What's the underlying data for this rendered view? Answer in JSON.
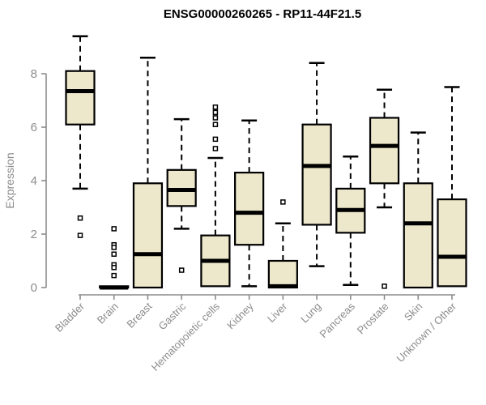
{
  "chart_data": {
    "type": "boxplot",
    "title": "ENSG00000260265 - RP11-44F21.5",
    "ylabel": "Expression",
    "xlabel": "",
    "ylim": [
      0,
      8
    ],
    "yticks": [
      0,
      2,
      4,
      6,
      8
    ],
    "grid": false,
    "legend": null,
    "categories": [
      "Bladder",
      "Brain",
      "Breast",
      "Gastric",
      "Hematopoietic cells",
      "Kidney",
      "Liver",
      "Lung",
      "Pancreas",
      "Prostate",
      "Skin",
      "Unknown / Other"
    ],
    "boxes": [
      {
        "category": "Bladder",
        "whisker_low": 3.7,
        "q1": 6.1,
        "median": 7.35,
        "q3": 8.1,
        "whisker_high": 9.4,
        "outliers": [
          2.6,
          1.95
        ]
      },
      {
        "category": "Brain",
        "whisker_low": 0,
        "q1": 0,
        "median": 0,
        "q3": 0.05,
        "whisker_high": 0.05,
        "outliers": [
          2.2,
          1.6,
          1.5,
          1.25,
          0.85,
          0.75,
          0.45
        ]
      },
      {
        "category": "Breast",
        "whisker_low": 0,
        "q1": 0,
        "median": 1.25,
        "q3": 3.9,
        "whisker_high": 8.6,
        "outliers": []
      },
      {
        "category": "Gastric",
        "whisker_low": 2.2,
        "q1": 3.05,
        "median": 3.65,
        "q3": 4.4,
        "whisker_high": 6.3,
        "outliers": [
          0.65
        ]
      },
      {
        "category": "Hematopoietic cells",
        "whisker_low": 0,
        "q1": 0.05,
        "median": 1.0,
        "q3": 1.95,
        "whisker_high": 4.85,
        "outliers": [
          6.75,
          6.55,
          6.35,
          6.1,
          5.55,
          5.2
        ]
      },
      {
        "category": "Kidney",
        "whisker_low": 0.05,
        "q1": 1.6,
        "median": 2.8,
        "q3": 4.3,
        "whisker_high": 6.25,
        "outliers": []
      },
      {
        "category": "Liver",
        "whisker_low": 0,
        "q1": 0,
        "median": 0.05,
        "q3": 1.0,
        "whisker_high": 2.4,
        "outliers": [
          3.2
        ]
      },
      {
        "category": "Lung",
        "whisker_low": 0.8,
        "q1": 2.35,
        "median": 4.55,
        "q3": 6.1,
        "whisker_high": 8.4,
        "outliers": []
      },
      {
        "category": "Pancreas",
        "whisker_low": 0.1,
        "q1": 2.05,
        "median": 2.9,
        "q3": 3.7,
        "whisker_high": 4.9,
        "outliers": []
      },
      {
        "category": "Prostate",
        "whisker_low": 3.0,
        "q1": 3.9,
        "median": 5.3,
        "q3": 6.35,
        "whisker_high": 7.4,
        "outliers": [
          0.05
        ]
      },
      {
        "category": "Skin",
        "whisker_low": 0,
        "q1": 0,
        "median": 2.4,
        "q3": 3.9,
        "whisker_high": 5.8,
        "outliers": []
      },
      {
        "category": "Unknown / Other",
        "whisker_low": 0,
        "q1": 0.05,
        "median": 1.15,
        "q3": 3.3,
        "whisker_high": 7.5,
        "outliers": []
      }
    ],
    "style": {
      "box_fill": "#EDE8CB",
      "box_border": "#000000",
      "median_color": "#000000",
      "whisker_color": "#000000",
      "outlier_fill": "#FFFFFF",
      "axis_color": "#8C8C8C",
      "tick_label_color": "#8C8C8C",
      "title_color": "#000000",
      "background": "#FFFFFF"
    }
  }
}
